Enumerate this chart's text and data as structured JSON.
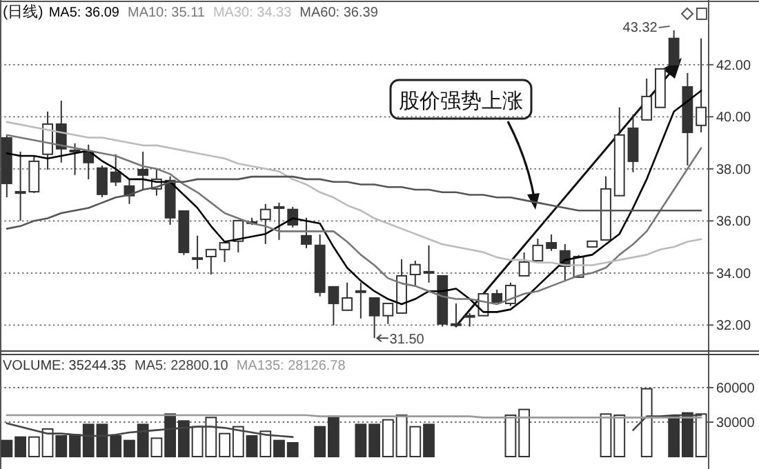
{
  "chart_data": [
    {
      "type": "candlestick",
      "title": "(日线)",
      "legend": "top left",
      "grid": "y",
      "categories": [
        null,
        null,
        null,
        null,
        null,
        null,
        null,
        null,
        null,
        null,
        null,
        null,
        null,
        null,
        null,
        null,
        null,
        null,
        null,
        null,
        null,
        null,
        null,
        null,
        null,
        null,
        null,
        null,
        null,
        null,
        null,
        null,
        null,
        null,
        null,
        null,
        null,
        null,
        null,
        null,
        null,
        null,
        null,
        null,
        null,
        null,
        null,
        null,
        null,
        null,
        null,
        null
      ],
      "ohlc": [
        [
          39.19,
          39.3,
          36.91,
          37.44
        ],
        [
          37.12,
          38.66,
          36.01,
          37.07
        ],
        [
          37.12,
          38.5,
          37.07,
          38.29
        ],
        [
          38.56,
          40.2,
          37.97,
          39.72
        ],
        [
          39.72,
          40.62,
          38.24,
          38.77
        ],
        [
          38.71,
          38.98,
          37.76,
          38.66
        ],
        [
          38.66,
          38.93,
          37.6,
          38.24
        ],
        [
          38.03,
          38.13,
          36.91,
          37.02
        ],
        [
          37.87,
          38.56,
          37.34,
          37.5
        ],
        [
          37.34,
          37.6,
          36.65,
          36.97
        ],
        [
          37.97,
          38.66,
          37.18,
          37.76
        ],
        [
          37.23,
          37.97,
          36.97,
          37.6
        ],
        [
          37.55,
          37.71,
          35.85,
          36.12
        ],
        [
          36.38,
          36.38,
          34.69,
          34.79
        ],
        [
          34.58,
          35.43,
          34.16,
          34.53
        ],
        [
          34.63,
          34.9,
          33.94,
          34.9
        ],
        [
          34.9,
          35.22,
          34.42,
          35.16
        ],
        [
          35.22,
          36.01,
          34.79,
          36.01
        ],
        [
          35.96,
          36.12,
          35.85,
          35.96
        ],
        [
          36.06,
          36.65,
          35.11,
          36.44
        ],
        [
          36.54,
          36.7,
          35.27,
          36.54
        ],
        [
          36.44,
          36.54,
          35.75,
          35.85
        ],
        [
          35.43,
          36.12,
          34.95,
          35.11
        ],
        [
          35.06,
          35.48,
          33.1,
          33.26
        ],
        [
          33.47,
          33.47,
          31.99,
          32.83
        ],
        [
          32.57,
          33.63,
          32.57,
          33.04
        ],
        [
          33.31,
          33.63,
          32.25,
          33.31
        ],
        [
          33.04,
          33.04,
          31.5,
          32.36
        ],
        [
          32.36,
          32.83,
          32.04,
          32.83
        ],
        [
          32.46,
          34.53,
          32.46,
          33.89
        ],
        [
          33.94,
          34.47,
          33.52,
          34.32
        ],
        [
          34.05,
          35.06,
          33.63,
          34.05
        ],
        [
          33.89,
          33.89,
          31.94,
          32.04
        ],
        [
          32.04,
          32.83,
          31.94,
          31.99
        ],
        [
          32.36,
          32.46,
          31.94,
          32.36
        ],
        [
          32.36,
          33.2,
          32.36,
          33.2
        ],
        [
          33.2,
          33.36,
          32.88,
          32.88
        ],
        [
          32.83,
          33.63,
          32.73,
          33.52
        ],
        [
          33.89,
          34.79,
          33.89,
          34.42
        ],
        [
          34.47,
          35.32,
          34.47,
          35.06
        ],
        [
          35.16,
          35.48,
          34.85,
          34.95
        ],
        [
          34.85,
          35.11,
          33.73,
          34.26
        ],
        [
          33.84,
          34.69,
          33.84,
          34.63
        ],
        [
          35.0,
          35.22,
          35.0,
          35.22
        ],
        [
          35.27,
          37.71,
          35.27,
          37.23
        ],
        [
          36.97,
          40.36,
          36.97,
          39.3
        ],
        [
          39.56,
          40.09,
          37.87,
          38.29
        ],
        [
          39.88,
          41.47,
          39.88,
          40.78
        ],
        [
          40.36,
          41.84,
          40.36,
          41.84
        ],
        [
          43.01,
          43.32,
          42.0,
          42.0
        ],
        [
          41.15,
          41.68,
          38.13,
          39.4
        ],
        [
          39.67,
          43.01,
          39.4,
          40.36
        ]
      ],
      "ylim": [
        31.08,
        44.38
      ],
      "yticks": [
        {
          "value": 32,
          "label": "32.00"
        },
        {
          "value": 34,
          "label": "34.00"
        },
        {
          "value": 36,
          "label": "36.00"
        },
        {
          "value": 38,
          "label": "38.00"
        },
        {
          "value": 40,
          "label": "40.00"
        },
        {
          "value": 42,
          "label": "42.00"
        }
      ],
      "series": [
        {
          "name": "MA5: 36.09",
          "type": "line",
          "color": "#000000",
          "values": [
            38.6,
            38.5,
            38.5,
            38.4,
            38.5,
            38.6,
            38.7,
            38.3,
            38.0,
            37.6,
            37.6,
            37.5,
            37.5,
            37.0,
            36.5,
            35.8,
            35.2,
            35.3,
            35.4,
            35.5,
            35.8,
            36.1,
            36.0,
            35.9,
            35.0,
            34.2,
            33.7,
            33.3,
            33.0,
            32.8,
            33.0,
            33.3,
            33.3,
            33.4,
            33.0,
            32.5,
            32.5,
            32.6,
            33.0,
            33.5,
            34.0,
            34.5,
            34.6,
            34.7,
            35.1,
            35.5,
            36.5,
            37.6,
            38.9,
            40.2,
            40.6,
            41.0
          ]
        },
        {
          "name": "MA10: 35.11",
          "type": "line",
          "color": "#777777",
          "values": [
            39.3,
            39.2,
            39.1,
            39.0,
            38.9,
            38.8,
            38.7,
            38.6,
            38.5,
            38.3,
            38.1,
            38.0,
            37.8,
            37.4,
            37.1,
            36.7,
            36.3,
            36.1,
            35.9,
            35.8,
            35.6,
            35.6,
            35.6,
            35.6,
            35.6,
            35.2,
            34.7,
            34.3,
            33.8,
            33.6,
            33.5,
            33.3,
            33.1,
            33.0,
            33.0,
            32.9,
            32.8,
            33.0,
            33.2,
            33.3,
            33.5,
            33.7,
            33.9,
            34.0,
            34.2,
            34.7,
            35.1,
            35.6,
            36.4,
            37.2,
            38.0,
            38.8
          ]
        },
        {
          "name": "MA30: 34.33",
          "type": "line",
          "color": "#bbbbbb",
          "values": [
            39.8,
            39.7,
            39.6,
            39.5,
            39.4,
            39.3,
            39.2,
            39.2,
            39.1,
            39.0,
            38.9,
            38.9,
            38.8,
            38.7,
            38.6,
            38.5,
            38.4,
            38.2,
            38.1,
            38.0,
            37.9,
            37.6,
            37.4,
            37.1,
            36.9,
            36.6,
            36.4,
            36.1,
            35.9,
            35.7,
            35.5,
            35.3,
            35.1,
            35.0,
            34.9,
            34.8,
            34.6,
            34.5,
            34.5,
            34.4,
            34.4,
            34.3,
            34.3,
            34.3,
            34.4,
            34.5,
            34.6,
            34.7,
            34.9,
            35.0,
            35.2,
            35.3
          ]
        },
        {
          "name": "MA60: 36.39",
          "type": "line",
          "color": "#555555",
          "values": [
            35.7,
            35.8,
            36.0,
            36.1,
            36.3,
            36.4,
            36.5,
            36.7,
            36.9,
            37.0,
            37.2,
            37.3,
            37.5,
            37.5,
            37.6,
            37.6,
            37.6,
            37.6,
            37.7,
            37.7,
            37.7,
            37.7,
            37.6,
            37.6,
            37.5,
            37.5,
            37.4,
            37.4,
            37.3,
            37.3,
            37.2,
            37.2,
            37.1,
            37.1,
            37.0,
            37.0,
            36.9,
            36.9,
            36.8,
            36.7,
            36.6,
            36.5,
            36.4,
            36.4,
            36.4,
            36.4,
            36.4,
            36.4,
            36.4,
            36.4,
            36.4,
            36.4
          ]
        }
      ],
      "annotations": [
        "43.32",
        "31.50",
        "股价强势上涨"
      ]
    },
    {
      "type": "bar",
      "legend": "top left",
      "grid": "y",
      "categories": [
        null,
        null,
        null,
        null,
        null,
        null,
        null,
        null,
        null,
        null,
        null,
        null,
        null,
        null,
        null,
        null,
        null,
        null,
        null,
        null,
        null,
        null,
        null,
        null,
        null,
        null,
        null,
        null,
        null,
        null,
        null,
        null,
        null,
        null,
        null,
        null,
        null,
        null,
        null,
        null,
        null,
        null,
        null,
        null,
        null,
        null,
        null,
        null,
        null,
        null,
        null,
        null
      ],
      "ylim": [
        0,
        87600
      ],
      "yticks": [
        30000,
        60000
      ],
      "series": [
        {
          "name": "VOLUME: 35244.35",
          "colors": [
            "#333333",
            "#333333",
            "#ffffff",
            "#ffffff",
            "#333333",
            "#333333",
            "#333333",
            "#333333",
            "#333333",
            "#333333",
            "#333333",
            "#ffffff",
            "#333333",
            "#333333",
            "#ffffff",
            "#ffffff",
            "#ffffff",
            "#ffffff",
            "#333333",
            "#ffffff",
            "#333333",
            "#333333",
            null,
            "#333333",
            "#333333",
            null,
            "#333333",
            "#333333",
            "#ffffff",
            "#ffffff",
            "#ffffff",
            "#333333",
            null,
            null,
            null,
            null,
            null,
            "#ffffff",
            "#ffffff",
            null,
            null,
            null,
            null,
            null,
            "#ffffff",
            "#ffffff",
            null,
            "#ffffff",
            null,
            "#333333",
            "#333333",
            "#ffffff"
          ],
          "values": [
            14000,
            17000,
            17000,
            24000,
            18000,
            19000,
            28000,
            28000,
            18000,
            14000,
            28000,
            16000,
            37000,
            31000,
            26000,
            34000,
            20000,
            26000,
            18000,
            22000,
            14000,
            12000,
            null,
            26000,
            35000,
            null,
            28000,
            28000,
            32000,
            36000,
            26000,
            28000,
            null,
            null,
            null,
            null,
            null,
            36000,
            41000,
            null,
            null,
            null,
            null,
            null,
            37000,
            36000,
            null,
            59000,
            null,
            35000,
            38000,
            37000
          ]
        },
        {
          "name": "MA5: 22800.10",
          "type": "line",
          "color": "#444444",
          "values": [
            29000,
            26000,
            23000,
            20000,
            20000,
            19000,
            18000,
            18000,
            19000,
            21000,
            22000,
            23000,
            24000,
            25000,
            26000,
            26000,
            25000,
            23000,
            21000,
            19000,
            18000,
            17000,
            null,
            null,
            null,
            null,
            null,
            null,
            null,
            null,
            null,
            null,
            null,
            null,
            null,
            null,
            null,
            null,
            null,
            null,
            null,
            null,
            null,
            null,
            null,
            null,
            23000,
            35000,
            35000,
            36000,
            36000,
            36000
          ]
        },
        {
          "name": "MA135: 28126.78",
          "type": "line",
          "color": "#999999",
          "values": [
            36000,
            36000,
            36000,
            36000,
            36000,
            36000,
            36000,
            36000,
            36000,
            36000,
            36000,
            36000,
            36000,
            36000,
            36000,
            36000,
            36000,
            36000,
            36000,
            36000,
            36000,
            36000,
            36000,
            35000,
            35000,
            35000,
            35000,
            35000,
            35000,
            35000,
            35000,
            35000,
            35000,
            35000,
            35000,
            34000,
            34000,
            34000,
            34000,
            34000,
            34000,
            34000,
            34000,
            34000,
            34000,
            34000,
            34000,
            34000,
            34000,
            34000,
            34000,
            34000
          ]
        }
      ]
    }
  ]
}
